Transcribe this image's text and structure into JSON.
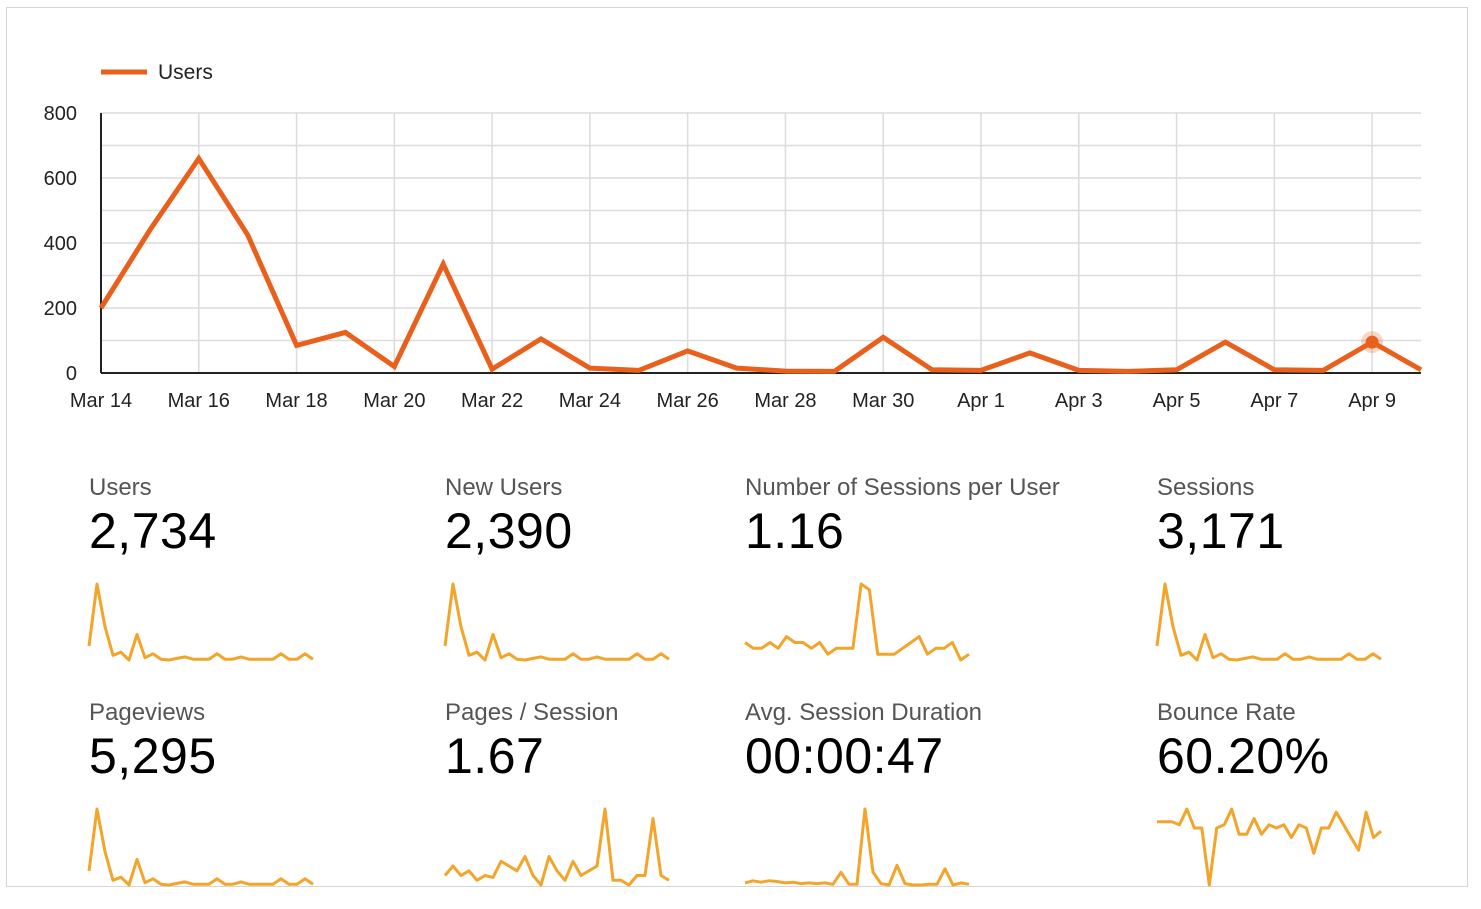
{
  "chart_data": {
    "type": "line",
    "legend": [
      "Users"
    ],
    "legend_position": "top-left",
    "grid": true,
    "ylim": [
      0,
      800
    ],
    "y_ticks": [
      0,
      200,
      400,
      600,
      800
    ],
    "x_ticks": [
      "Mar 14",
      "Mar 16",
      "Mar 18",
      "Mar 20",
      "Mar 22",
      "Mar 24",
      "Mar 26",
      "Mar 28",
      "Mar 30",
      "Apr 1",
      "Apr 3",
      "Apr 5",
      "Apr 7",
      "Apr 9"
    ],
    "x": [
      "Mar 14",
      "Mar 15",
      "Mar 16",
      "Mar 17",
      "Mar 18",
      "Mar 19",
      "Mar 20",
      "Mar 21",
      "Mar 22",
      "Mar 23",
      "Mar 24",
      "Mar 25",
      "Mar 26",
      "Mar 27",
      "Mar 28",
      "Mar 29",
      "Mar 30",
      "Mar 31",
      "Apr 1",
      "Apr 2",
      "Apr 3",
      "Apr 4",
      "Apr 5",
      "Apr 6",
      "Apr 7",
      "Apr 8",
      "Apr 9",
      "Apr 10"
    ],
    "series": [
      {
        "name": "Users",
        "color": "#e8601c",
        "values": [
          200,
          440,
          660,
          425,
          85,
          125,
          20,
          335,
          12,
          105,
          15,
          8,
          68,
          15,
          6,
          5,
          110,
          10,
          8,
          62,
          8,
          5,
          10,
          95,
          10,
          8,
          95,
          10
        ],
        "highlight_index": 26
      }
    ]
  },
  "metrics": [
    {
      "label": "Users",
      "value": "2,734",
      "spark": [
        20,
        100,
        45,
        8,
        12,
        2,
        35,
        5,
        10,
        3,
        2,
        4,
        6,
        3,
        3,
        3,
        10,
        3,
        3,
        6,
        3,
        3,
        3,
        3,
        10,
        3,
        3,
        10,
        3
      ]
    },
    {
      "label": "New Users",
      "value": "2,390",
      "spark": [
        20,
        100,
        45,
        8,
        12,
        2,
        35,
        5,
        10,
        3,
        2,
        4,
        6,
        3,
        3,
        3,
        10,
        3,
        3,
        6,
        3,
        3,
        3,
        3,
        10,
        3,
        3,
        10,
        3
      ]
    },
    {
      "label": "Number of Sessions per User",
      "value": "1.16",
      "spark": [
        1.1,
        1.09,
        1.09,
        1.1,
        1.09,
        1.11,
        1.1,
        1.1,
        1.09,
        1.1,
        1.08,
        1.09,
        1.09,
        1.09,
        1.2,
        1.19,
        1.08,
        1.08,
        1.08,
        1.09,
        1.1,
        1.11,
        1.08,
        1.09,
        1.09,
        1.1,
        1.07,
        1.08
      ]
    },
    {
      "label": "Sessions",
      "value": "3,171",
      "spark": [
        20,
        100,
        45,
        8,
        12,
        2,
        35,
        5,
        10,
        3,
        2,
        4,
        6,
        3,
        3,
        3,
        10,
        3,
        3,
        6,
        3,
        3,
        3,
        3,
        10,
        3,
        3,
        10,
        3
      ]
    },
    {
      "label": "Pageviews",
      "value": "5,295",
      "spark": [
        20,
        100,
        45,
        8,
        12,
        2,
        35,
        5,
        10,
        3,
        2,
        4,
        6,
        3,
        3,
        3,
        10,
        3,
        3,
        6,
        3,
        3,
        3,
        3,
        10,
        3,
        3,
        10,
        3
      ]
    },
    {
      "label": "Pages / Session",
      "value": "1.67",
      "spark": [
        1.2,
        1.3,
        1.2,
        1.25,
        1.15,
        1.2,
        1.18,
        1.35,
        1.3,
        1.25,
        1.4,
        1.2,
        1.1,
        1.4,
        1.25,
        1.15,
        1.35,
        1.2,
        1.25,
        1.3,
        1.9,
        1.15,
        1.15,
        1.1,
        1.2,
        1.2,
        1.8,
        1.2,
        1.15
      ]
    },
    {
      "label": "Avg. Session Duration",
      "value": "00:00:47",
      "spark": [
        5,
        8,
        6,
        8,
        7,
        5,
        6,
        4,
        5,
        4,
        5,
        3,
        20,
        3,
        3,
        110,
        20,
        4,
        2,
        30,
        4,
        2,
        2,
        3,
        3,
        25,
        2,
        5,
        3
      ]
    },
    {
      "label": "Bounce Rate",
      "value": "60.20%",
      "spark": [
        60,
        60,
        60,
        59,
        64,
        58,
        58,
        40,
        58,
        59,
        64,
        56,
        56,
        61,
        56,
        59,
        58,
        59,
        55,
        59,
        58,
        50,
        58,
        58,
        63,
        59,
        55,
        51,
        63,
        55,
        57
      ]
    }
  ]
}
